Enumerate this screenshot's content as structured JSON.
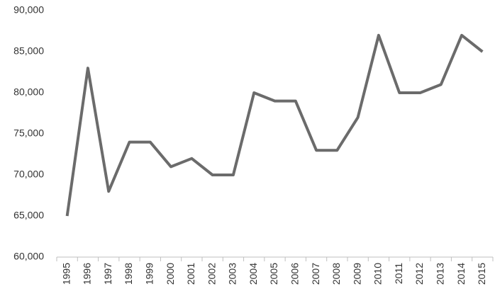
{
  "chart_data": {
    "type": "line",
    "categories": [
      "1995",
      "1996",
      "1997",
      "1998",
      "1999",
      "2000",
      "2001",
      "2002",
      "2003",
      "2004",
      "2005",
      "2006",
      "2007",
      "2008",
      "2009",
      "2010",
      "2011",
      "2012",
      "2013",
      "2014",
      "2015"
    ],
    "values": [
      65000,
      83000,
      68000,
      74000,
      74000,
      71000,
      72000,
      70000,
      70000,
      80000,
      79000,
      79000,
      73000,
      73000,
      77000,
      87000,
      80000,
      80000,
      81000,
      87000,
      85000
    ],
    "color": "#6b6b6b",
    "ylim": [
      60000,
      90000
    ],
    "yticks": [
      {
        "value": 60000,
        "label": "60,000"
      },
      {
        "value": 65000,
        "label": "65,000"
      },
      {
        "value": 70000,
        "label": "70,000"
      },
      {
        "value": 75000,
        "label": "75,000"
      },
      {
        "value": 80000,
        "label": "80,000"
      },
      {
        "value": 85000,
        "label": "85,000"
      },
      {
        "value": 90000,
        "label": "90,000"
      }
    ],
    "grid": false
  }
}
